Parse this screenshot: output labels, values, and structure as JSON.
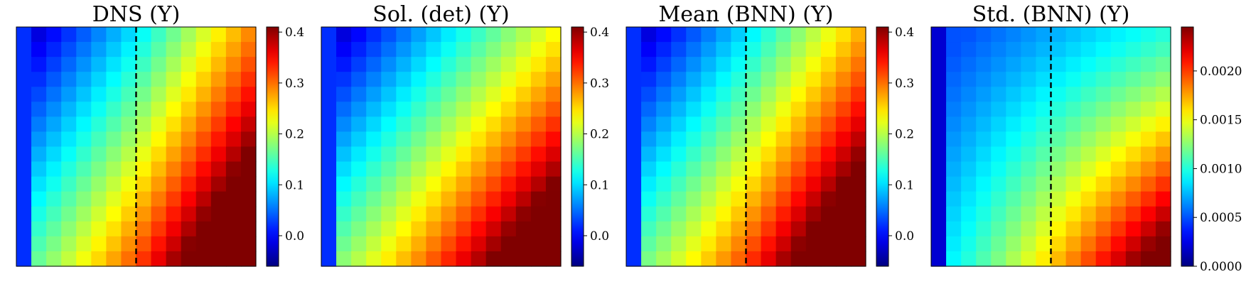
{
  "chart_data": [
    {
      "type": "heatmap",
      "title": "DNS (Y)",
      "rows": 16,
      "cols": 16,
      "grid": false,
      "colormap": "jet",
      "colorbar": {
        "range": [
          -0.06,
          0.41
        ],
        "ticks": [
          0.0,
          0.1,
          0.2,
          0.3,
          0.4
        ],
        "tick_labels": [
          "0.0",
          "0.1",
          "0.2",
          "0.3",
          "0.4"
        ]
      },
      "first_col": 0.02,
      "field": {
        "v0": -0.05,
        "c_u": 0.32,
        "c_v": 0.2,
        "u_extra": 0.08,
        "u_extra_start": 0.5,
        "amp": 0.95,
        "scale": 1.0
      },
      "dashed_line_col": 7.5
    },
    {
      "type": "heatmap",
      "title": "Sol. (det) (Y)",
      "rows": 16,
      "cols": 16,
      "grid": false,
      "colormap": "jet",
      "colorbar": {
        "range": [
          -0.06,
          0.41
        ],
        "ticks": [
          0.0,
          0.1,
          0.2,
          0.3,
          0.4
        ],
        "tick_labels": [
          "0.0",
          "0.1",
          "0.2",
          "0.3",
          "0.4"
        ]
      },
      "first_col": 0.02,
      "field": {
        "v0": -0.05,
        "c_u": 0.3,
        "c_v": 0.22,
        "u_extra": 0.0,
        "u_extra_start": 0.5,
        "amp": 0.95,
        "scale": 1.0
      },
      "dashed_line_col": null
    },
    {
      "type": "heatmap",
      "title": "Mean (BNN) (Y)",
      "rows": 16,
      "cols": 16,
      "grid": false,
      "colormap": "jet",
      "colorbar": {
        "range": [
          -0.06,
          0.41
        ],
        "ticks": [
          0.0,
          0.1,
          0.2,
          0.3,
          0.4
        ],
        "tick_labels": [
          "0.0",
          "0.1",
          "0.2",
          "0.3",
          "0.4"
        ]
      },
      "first_col": 0.02,
      "field": {
        "v0": -0.05,
        "c_u": 0.31,
        "c_v": 0.21,
        "u_extra": 0.06,
        "u_extra_start": 0.5,
        "amp": 0.95,
        "scale": 1.0
      },
      "dashed_line_col": 7.5
    },
    {
      "type": "heatmap",
      "title": "Std. (BNN) (Y)",
      "rows": 16,
      "cols": 16,
      "grid": false,
      "colormap": "jet",
      "colorbar": {
        "range": [
          0.0,
          0.00245
        ],
        "ticks": [
          0.0,
          0.0005,
          0.001,
          0.0015,
          0.002
        ],
        "tick_labels": [
          "0.0000",
          "0.0005",
          "0.0010",
          "0.0015",
          "0.0020"
        ]
      },
      "first_col": 0.0,
      "field": {
        "v0": 0.0004,
        "c_u": 0.0006,
        "c_v": 0.0004,
        "u_extra": 0.0,
        "u_extra_start": 0.5,
        "amp": 0.0011,
        "scale": 1.0
      },
      "dashed_line_col": 7.5
    }
  ]
}
